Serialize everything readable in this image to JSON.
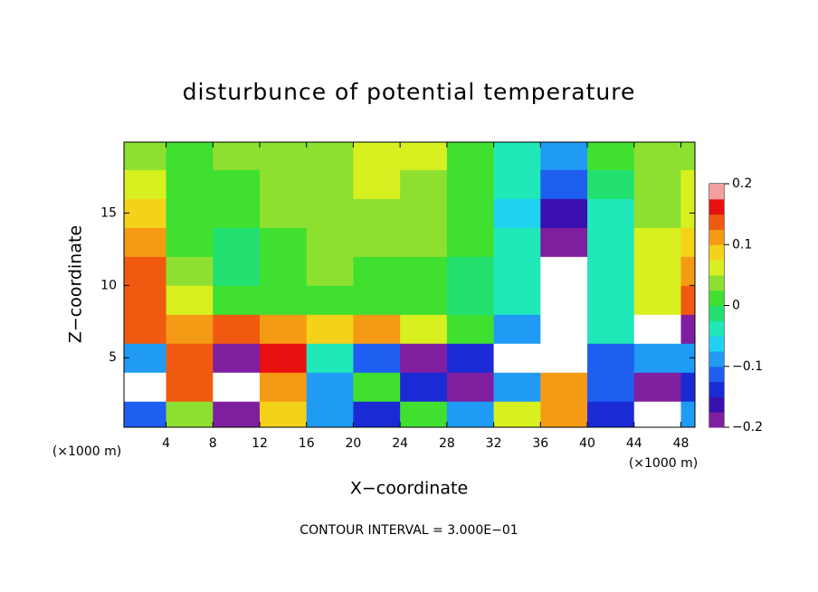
{
  "chart_data": {
    "type": "contour",
    "title": "disturbunce of potential temperature",
    "x_label": "X−coordinate",
    "y_label": "Z−coordinate",
    "x_unit": "(×1000 m)",
    "annotation": "CONTOUR INTERVAL = 3.000E−01",
    "x": [
      2,
      6,
      10,
      14,
      18,
      22,
      26,
      30,
      34,
      38,
      42,
      46,
      50
    ],
    "y": [
      1,
      3,
      5,
      7,
      9,
      11,
      13,
      15,
      17,
      19
    ],
    "z": [
      [
        -0.12,
        0.04,
        -0.2,
        0.08,
        -0.1,
        -0.14,
        0.0,
        -0.08,
        0.06,
        0.12,
        -0.14,
        -0.22,
        -0.1
      ],
      [
        -0.22,
        0.14,
        -0.25,
        0.12,
        -0.08,
        0.02,
        -0.14,
        -0.2,
        -0.1,
        0.1,
        -0.12,
        -0.2,
        -0.15
      ],
      [
        -0.1,
        0.15,
        -0.18,
        0.16,
        -0.05,
        -0.12,
        -0.2,
        -0.15,
        -0.25,
        -0.25,
        -0.12,
        -0.08,
        -0.1
      ],
      [
        0.15,
        0.12,
        0.14,
        0.1,
        0.08,
        0.1,
        0.06,
        0.0,
        -0.1,
        -0.25,
        -0.05,
        -0.22,
        -0.2
      ],
      [
        0.14,
        0.06,
        0.0,
        0.02,
        0.02,
        0.02,
        0.0,
        -0.02,
        -0.03,
        -0.24,
        -0.03,
        0.05,
        0.13
      ],
      [
        0.13,
        0.03,
        -0.02,
        0.02,
        0.03,
        0.02,
        0.02,
        -0.01,
        -0.04,
        -0.25,
        -0.04,
        0.06,
        0.12
      ],
      [
        0.1,
        0.02,
        -0.02,
        0.02,
        0.03,
        0.03,
        0.03,
        0.0,
        -0.05,
        -0.19,
        -0.05,
        0.05,
        0.09
      ],
      [
        0.08,
        0.01,
        0.0,
        0.03,
        0.04,
        0.04,
        0.03,
        0.01,
        -0.06,
        -0.16,
        -0.04,
        0.04,
        0.07
      ],
      [
        0.06,
        0.02,
        0.02,
        0.03,
        0.04,
        0.05,
        0.04,
        0.02,
        -0.05,
        -0.12,
        -0.02,
        0.03,
        0.05
      ],
      [
        0.04,
        0.02,
        0.03,
        0.03,
        0.03,
        0.06,
        0.05,
        0.02,
        -0.03,
        -0.08,
        0.0,
        0.03,
        0.04
      ]
    ],
    "xlim": [
      0.4,
      49.2
    ],
    "ylim": [
      0.2,
      19.9
    ],
    "xticks": [
      4,
      8,
      12,
      16,
      20,
      24,
      28,
      32,
      36,
      40,
      44,
      48
    ],
    "yticks": [
      5,
      10,
      15
    ],
    "clim": [
      -0.2,
      0.2
    ],
    "cticks": [
      {
        "value": -0.2,
        "label": "−0.2"
      },
      {
        "value": -0.1,
        "label": "−0.1"
      },
      0,
      0.1,
      0.2
    ],
    "colorscale": [
      "#7f1f9f",
      "#3a10b0",
      "#1a2bd6",
      "#1e5ef0",
      "#1f9bf5",
      "#1fd3f0",
      "#20e8b8",
      "#22e070",
      "#40e030",
      "#8ee030",
      "#d8f020",
      "#f5d21a",
      "#f59a14",
      "#f05a10",
      "#e81010",
      "#f5a0a0"
    ],
    "out_of_range_color": "#ffffff"
  }
}
